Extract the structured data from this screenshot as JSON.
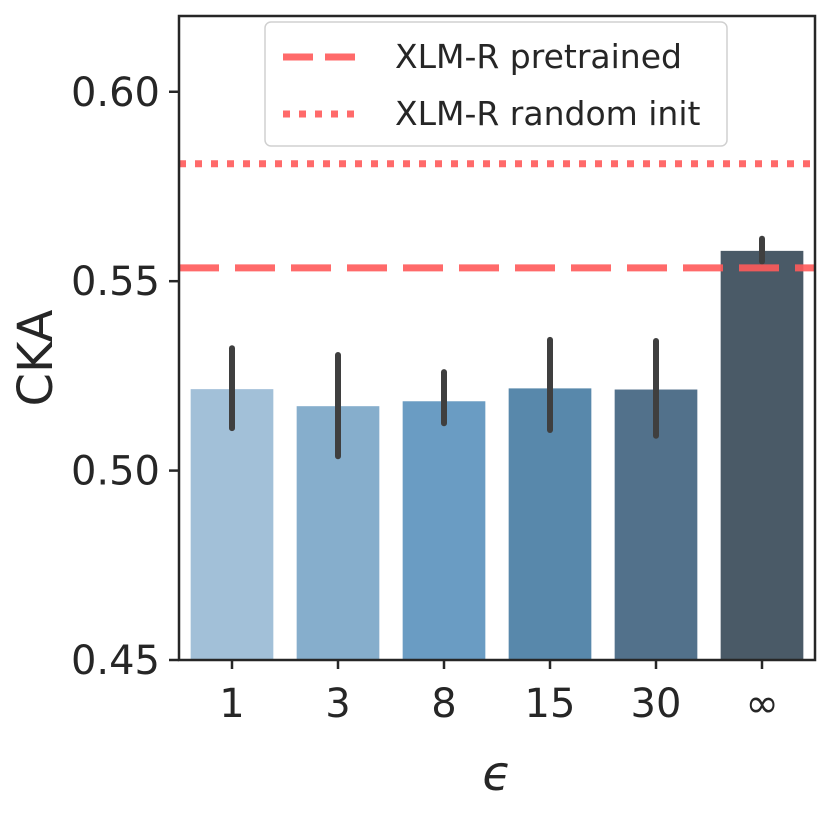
{
  "chart_data": {
    "type": "bar",
    "xlabel": "ϵ",
    "ylabel": "CKA",
    "ylim": [
      0.45,
      0.62
    ],
    "yticks": [
      0.45,
      0.5,
      0.55,
      0.6
    ],
    "ytick_labels": [
      "0.45",
      "0.50",
      "0.55",
      "0.60"
    ],
    "categories": [
      "1",
      "3",
      "8",
      "15",
      "30",
      "∞"
    ],
    "values": [
      0.5215,
      0.517,
      0.5183,
      0.5217,
      0.5214,
      0.558
    ],
    "error_low": [
      0.5112,
      0.5038,
      0.5125,
      0.5107,
      0.5092,
      0.5552
    ],
    "error_high": [
      0.5323,
      0.5305,
      0.526,
      0.5345,
      0.5342,
      0.5612
    ],
    "bar_colors": [
      "#a2c0d8",
      "#86aecc",
      "#6a9cc3",
      "#5888ab",
      "#52718b",
      "#4a5a67"
    ],
    "reference_lines": [
      {
        "name": "XLM-R pretrained",
        "value": 0.5535,
        "style": "dashed",
        "color": "#ff5a5a"
      },
      {
        "name": "XLM-R random init",
        "value": 0.581,
        "style": "dotted",
        "color": "#ff5a5a"
      }
    ],
    "legend_position": "top-right",
    "grid": false
  }
}
